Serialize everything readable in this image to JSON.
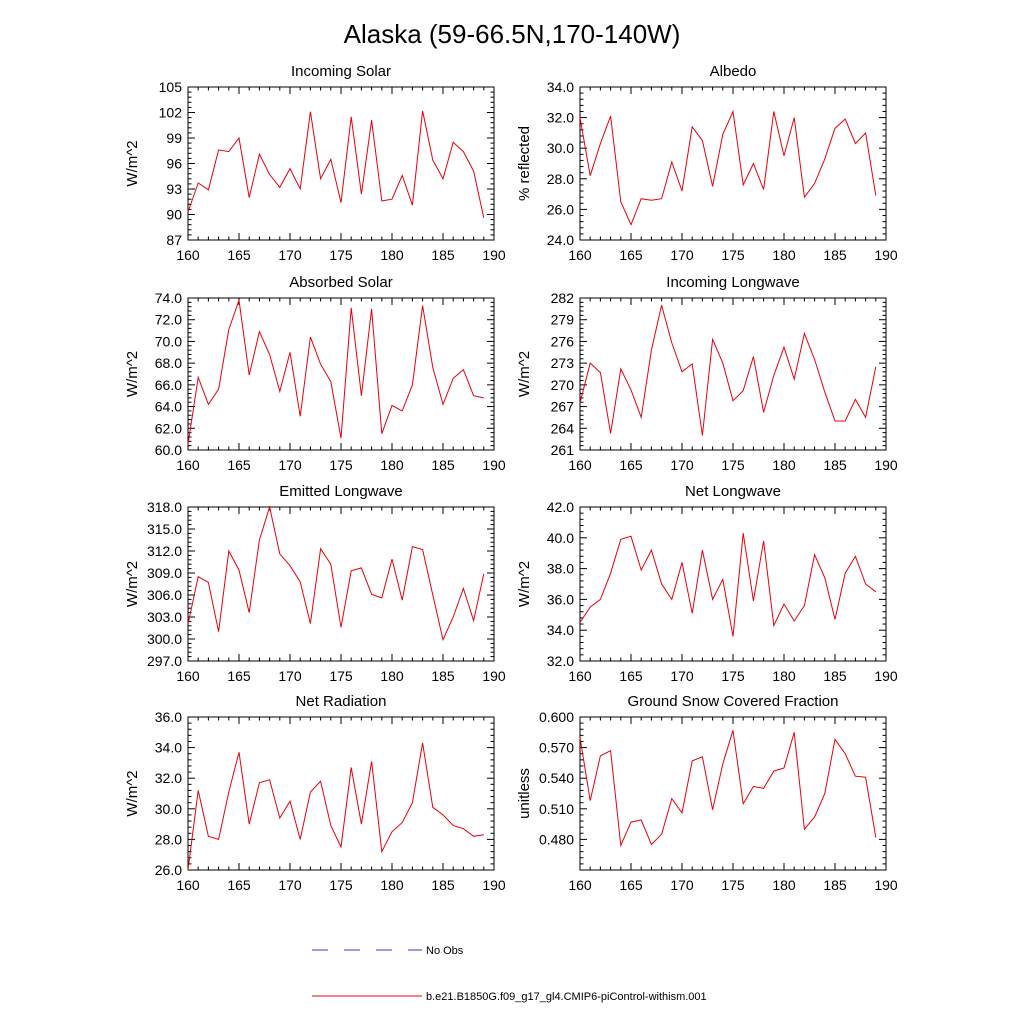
{
  "title": "Alaska (59-66.5N,170-140W)",
  "legend": [
    {
      "label": "No Obs",
      "color": "#3333cc",
      "style": "dashed"
    },
    {
      "label": "b.e21.B1850G.f09_g17_gl4.CMIP6-piControl-withism.001",
      "color": "#e8000b",
      "style": "solid"
    }
  ],
  "chart_data": [
    {
      "type": "line",
      "title": "Incoming Solar",
      "ylabel": "W/m^2",
      "xlim": [
        160,
        190
      ],
      "xticks": [
        160,
        165,
        170,
        175,
        180,
        185,
        190
      ],
      "ylim": [
        87,
        105
      ],
      "yticks": [
        "87",
        "90",
        "93",
        "96",
        "99",
        "102",
        "105"
      ],
      "x": [
        160,
        161,
        162,
        163,
        164,
        165,
        166,
        167,
        168,
        169,
        170,
        171,
        172,
        173,
        174,
        175,
        176,
        177,
        178,
        179,
        180,
        181,
        182,
        183,
        184,
        185,
        186,
        187,
        188,
        189
      ],
      "series": [
        {
          "name": "b.e21.B1850G.f09_g17_gl4.CMIP6-piControl-withism.001",
          "color": "#e8000b",
          "values": [
            90.3,
            93.7,
            92.9,
            97.6,
            97.4,
            99.0,
            92.0,
            97.1,
            94.7,
            93.2,
            95.4,
            93.0,
            102.1,
            94.2,
            96.5,
            91.4,
            101.5,
            92.4,
            101.1,
            91.6,
            91.8,
            94.6,
            91.1,
            102.2,
            96.4,
            94.2,
            98.5,
            97.4,
            95.1,
            89.6
          ]
        }
      ]
    },
    {
      "type": "line",
      "title": "Albedo",
      "ylabel": "% reflected",
      "xlim": [
        160,
        190
      ],
      "xticks": [
        160,
        165,
        170,
        175,
        180,
        185,
        190
      ],
      "ylim": [
        24.0,
        34.0
      ],
      "yticks": [
        "24.0",
        "26.0",
        "28.0",
        "30.0",
        "32.0",
        "34.0"
      ],
      "x": [
        160,
        161,
        162,
        163,
        164,
        165,
        166,
        167,
        168,
        169,
        170,
        171,
        172,
        173,
        174,
        175,
        176,
        177,
        178,
        179,
        180,
        181,
        182,
        183,
        184,
        185,
        186,
        187,
        188,
        189
      ],
      "series": [
        {
          "name": "b.e21.B1850G.f09_g17_gl4.CMIP6-piControl-withism.001",
          "color": "#e8000b",
          "values": [
            32.0,
            28.2,
            30.3,
            32.1,
            26.5,
            25.0,
            26.7,
            26.6,
            26.7,
            29.1,
            27.2,
            31.4,
            30.5,
            27.5,
            30.9,
            32.4,
            27.6,
            29.0,
            27.3,
            32.4,
            29.5,
            32.0,
            26.8,
            27.7,
            29.3,
            31.3,
            31.9,
            30.3,
            31.0,
            26.9
          ]
        }
      ]
    },
    {
      "type": "line",
      "title": "Absorbed Solar",
      "ylabel": "W/m^2",
      "xlim": [
        160,
        190
      ],
      "xticks": [
        160,
        165,
        170,
        175,
        180,
        185,
        190
      ],
      "ylim": [
        60.0,
        74.0
      ],
      "yticks": [
        "60.0",
        "62.0",
        "64.0",
        "66.0",
        "68.0",
        "70.0",
        "72.0",
        "74.0"
      ],
      "x": [
        160,
        161,
        162,
        163,
        164,
        165,
        166,
        167,
        168,
        169,
        170,
        171,
        172,
        173,
        174,
        175,
        176,
        177,
        178,
        179,
        180,
        181,
        182,
        183,
        184,
        185,
        186,
        187,
        188,
        189
      ],
      "series": [
        {
          "name": "b.e21.B1850G.f09_g17_gl4.CMIP6-piControl-withism.001",
          "color": "#e8000b",
          "values": [
            60.5,
            66.7,
            64.2,
            65.6,
            71.1,
            73.8,
            66.9,
            70.9,
            68.8,
            65.4,
            69.0,
            63.1,
            70.4,
            67.9,
            66.3,
            61.1,
            73.1,
            65.0,
            73.0,
            61.5,
            64.1,
            63.6,
            66.0,
            73.3,
            67.6,
            64.2,
            66.6,
            67.4,
            65.0,
            64.8
          ]
        }
      ]
    },
    {
      "type": "line",
      "title": "Incoming Longwave",
      "ylabel": "W/m^2",
      "xlim": [
        160,
        190
      ],
      "xticks": [
        160,
        165,
        170,
        175,
        180,
        185,
        190
      ],
      "ylim": [
        261,
        282
      ],
      "yticks": [
        "261",
        "264",
        "267",
        "270",
        "273",
        "276",
        "279",
        "282"
      ],
      "x": [
        160,
        161,
        162,
        163,
        164,
        165,
        166,
        167,
        168,
        169,
        170,
        171,
        172,
        173,
        174,
        175,
        176,
        177,
        178,
        179,
        180,
        181,
        182,
        183,
        184,
        185,
        186,
        187,
        188,
        189
      ],
      "series": [
        {
          "name": "b.e21.B1850G.f09_g17_gl4.CMIP6-piControl-withism.001",
          "color": "#e8000b",
          "values": [
            267.5,
            273.0,
            271.7,
            263.3,
            272.2,
            269.3,
            265.5,
            274.8,
            281.0,
            275.8,
            271.8,
            272.9,
            263.0,
            276.3,
            273.0,
            267.8,
            269.2,
            273.9,
            266.2,
            271.3,
            275.2,
            270.8,
            277.1,
            273.5,
            269.0,
            265.0,
            265.0,
            268.0,
            265.5,
            272.5
          ]
        }
      ]
    },
    {
      "type": "line",
      "title": "Emitted Longwave",
      "ylabel": "W/m^2",
      "xlim": [
        160,
        190
      ],
      "xticks": [
        160,
        165,
        170,
        175,
        180,
        185,
        190
      ],
      "ylim": [
        297.0,
        318.0
      ],
      "yticks": [
        "297.0",
        "300.0",
        "303.0",
        "306.0",
        "309.0",
        "312.0",
        "315.0",
        "318.0"
      ],
      "x": [
        160,
        161,
        162,
        163,
        164,
        165,
        166,
        167,
        168,
        169,
        170,
        171,
        172,
        173,
        174,
        175,
        176,
        177,
        178,
        179,
        180,
        181,
        182,
        183,
        184,
        185,
        186,
        187,
        188,
        189
      ],
      "series": [
        {
          "name": "b.e21.B1850G.f09_g17_gl4.CMIP6-piControl-withism.001",
          "color": "#e8000b",
          "values": [
            302.0,
            308.5,
            307.7,
            301.0,
            312.0,
            309.4,
            303.6,
            313.5,
            318.0,
            311.6,
            310.0,
            307.8,
            302.1,
            312.3,
            310.2,
            301.6,
            309.3,
            309.7,
            306.1,
            305.6,
            310.9,
            305.3,
            312.6,
            312.2,
            306.0,
            299.9,
            303.0,
            306.9,
            302.5,
            308.9
          ]
        }
      ]
    },
    {
      "type": "line",
      "title": "Net Longwave",
      "ylabel": "W/m^2",
      "xlim": [
        160,
        190
      ],
      "xticks": [
        160,
        165,
        170,
        175,
        180,
        185,
        190
      ],
      "ylim": [
        32.0,
        42.0
      ],
      "yticks": [
        "32.0",
        "34.0",
        "36.0",
        "38.0",
        "40.0",
        "42.0"
      ],
      "x": [
        160,
        161,
        162,
        163,
        164,
        165,
        166,
        167,
        168,
        169,
        170,
        171,
        172,
        173,
        174,
        175,
        176,
        177,
        178,
        179,
        180,
        181,
        182,
        183,
        184,
        185,
        186,
        187,
        188,
        189
      ],
      "series": [
        {
          "name": "b.e21.B1850G.f09_g17_gl4.CMIP6-piControl-withism.001",
          "color": "#e8000b",
          "values": [
            34.5,
            35.5,
            36.0,
            37.7,
            39.9,
            40.1,
            37.9,
            39.2,
            37.0,
            36.0,
            38.4,
            35.1,
            39.2,
            36.0,
            37.3,
            33.6,
            40.3,
            35.9,
            39.8,
            34.3,
            35.7,
            34.6,
            35.6,
            38.9,
            37.4,
            34.7,
            37.7,
            38.8,
            37.0,
            36.5
          ]
        }
      ]
    },
    {
      "type": "line",
      "title": "Net Radiation",
      "ylabel": "W/m^2",
      "xlim": [
        160,
        190
      ],
      "xticks": [
        160,
        165,
        170,
        175,
        180,
        185,
        190
      ],
      "ylim": [
        26.0,
        36.0
      ],
      "yticks": [
        "26.0",
        "28.0",
        "30.0",
        "32.0",
        "34.0",
        "36.0"
      ],
      "x": [
        160,
        161,
        162,
        163,
        164,
        165,
        166,
        167,
        168,
        169,
        170,
        171,
        172,
        173,
        174,
        175,
        176,
        177,
        178,
        179,
        180,
        181,
        182,
        183,
        184,
        185,
        186,
        187,
        188,
        189
      ],
      "series": [
        {
          "name": "b.e21.B1850G.f09_g17_gl4.CMIP6-piControl-withism.001",
          "color": "#e8000b",
          "values": [
            26.0,
            31.2,
            28.2,
            28.0,
            31.1,
            33.7,
            29.0,
            31.7,
            31.9,
            29.4,
            30.5,
            28.0,
            31.1,
            31.8,
            28.9,
            27.5,
            32.7,
            29.0,
            33.1,
            27.2,
            28.5,
            29.1,
            30.4,
            34.3,
            30.1,
            29.6,
            28.9,
            28.7,
            28.2,
            28.3
          ]
        }
      ]
    },
    {
      "type": "line",
      "title": "Ground Snow Covered Fraction",
      "ylabel": "unitless",
      "xlim": [
        160,
        190
      ],
      "xticks": [
        160,
        165,
        170,
        175,
        180,
        185,
        190
      ],
      "ylim": [
        0.45,
        0.6
      ],
      "yticks": [
        "0.480",
        "0.510",
        "0.540",
        "0.570",
        "0.600"
      ],
      "x": [
        160,
        161,
        162,
        163,
        164,
        165,
        166,
        167,
        168,
        169,
        170,
        171,
        172,
        173,
        174,
        175,
        176,
        177,
        178,
        179,
        180,
        181,
        182,
        183,
        184,
        185,
        186,
        187,
        188,
        189
      ],
      "series": [
        {
          "name": "b.e21.B1850G.f09_g17_gl4.CMIP6-piControl-withism.001",
          "color": "#e8000b",
          "values": [
            0.58,
            0.518,
            0.562,
            0.567,
            0.474,
            0.497,
            0.499,
            0.475,
            0.485,
            0.52,
            0.506,
            0.557,
            0.561,
            0.509,
            0.554,
            0.587,
            0.515,
            0.532,
            0.53,
            0.547,
            0.55,
            0.585,
            0.49,
            0.502,
            0.525,
            0.578,
            0.564,
            0.542,
            0.541,
            0.482
          ]
        }
      ]
    }
  ]
}
